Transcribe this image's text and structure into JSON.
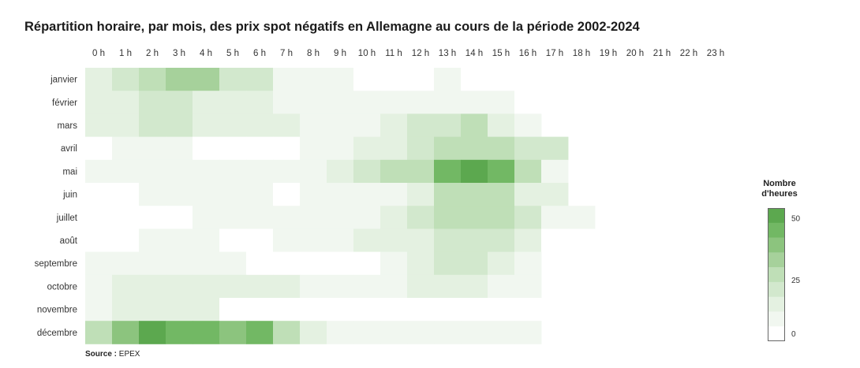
{
  "title": "Répartition horaire, par mois, des prix spot négatifs en Allemagne au cours de la période 2002-2024",
  "source": {
    "label": "Source :",
    "value": "EPEX"
  },
  "chart_data": {
    "type": "heatmap",
    "title": "Répartition horaire, par mois, des prix spot négatifs en Allemagne au cours de la période 2002-2024",
    "x_categories": [
      "0 h",
      "1 h",
      "2 h",
      "3 h",
      "4 h",
      "5 h",
      "6 h",
      "7 h",
      "8 h",
      "9 h",
      "10 h",
      "11 h",
      "12 h",
      "13 h",
      "14 h",
      "15 h",
      "16 h",
      "17 h",
      "18 h",
      "19 h",
      "20 h",
      "21 h",
      "22 h",
      "23 h"
    ],
    "y_categories": [
      "janvier",
      "février",
      "mars",
      "avril",
      "mai",
      "juin",
      "juillet",
      "août",
      "septembre",
      "octobre",
      "novembre",
      "décembre"
    ],
    "values": [
      [
        16,
        22,
        24,
        32,
        32,
        17,
        18,
        10,
        6,
        4,
        3,
        2,
        2,
        5,
        3,
        2,
        1,
        null,
        null,
        null,
        null,
        null,
        null,
        null
      ],
      [
        14,
        14,
        17,
        18,
        15,
        12,
        13,
        8,
        4,
        4,
        4,
        5,
        6,
        6,
        6,
        4,
        3,
        null,
        null,
        null,
        null,
        null,
        null,
        null
      ],
      [
        15,
        16,
        18,
        18,
        16,
        11,
        16,
        11,
        4,
        6,
        9,
        12,
        18,
        21,
        25,
        15,
        8,
        null,
        null,
        null,
        null,
        null,
        null,
        null
      ],
      [
        2,
        4,
        5,
        5,
        3,
        2,
        2,
        3,
        4,
        6,
        12,
        14,
        22,
        25,
        25,
        27,
        21,
        21,
        null,
        null,
        null,
        null,
        null,
        null
      ],
      [
        6,
        9,
        9,
        9,
        7,
        10,
        10,
        8,
        8,
        12,
        21,
        28,
        30,
        50,
        53,
        48,
        29,
        8,
        null,
        null,
        null,
        null,
        null,
        null
      ],
      [
        2,
        3,
        4,
        5,
        6,
        6,
        5,
        2,
        5,
        5,
        7,
        8,
        16,
        27,
        29,
        27,
        15,
        12,
        null,
        null,
        null,
        null,
        null,
        null
      ],
      [
        3,
        3,
        3,
        3,
        4,
        5,
        5,
        6,
        6,
        7,
        10,
        15,
        19,
        26,
        27,
        25,
        18,
        10,
        5,
        null,
        null,
        null,
        null,
        null
      ],
      [
        2,
        3,
        4,
        4,
        4,
        3,
        2,
        4,
        4,
        5,
        11,
        11,
        16,
        20,
        18,
        18,
        14,
        3,
        3,
        null,
        null,
        null,
        null,
        null
      ],
      [
        7,
        7,
        10,
        10,
        9,
        4,
        2,
        2,
        1,
        2,
        3,
        8,
        13,
        20,
        20,
        14,
        5,
        null,
        null,
        null,
        null,
        null,
        null,
        null
      ],
      [
        9,
        12,
        14,
        14,
        14,
        12,
        12,
        12,
        5,
        6,
        9,
        9,
        11,
        12,
        12,
        10,
        7,
        null,
        null,
        null,
        null,
        null,
        null,
        null
      ],
      [
        8,
        12,
        15,
        15,
        13,
        2,
        2,
        2,
        1,
        1,
        1,
        1,
        1,
        1,
        1,
        1,
        1,
        null,
        null,
        null,
        null,
        null,
        null,
        null
      ],
      [
        26,
        41,
        52,
        48,
        45,
        40,
        44,
        26,
        14,
        8,
        8,
        8,
        9,
        8,
        7,
        7,
        6,
        null,
        null,
        null,
        2,
        2,
        2,
        2
      ]
    ],
    "legend": {
      "title": [
        "Nombre",
        "d'heures"
      ],
      "tick_labels": [
        "50",
        "25",
        "0"
      ],
      "placement": "right",
      "color_steps": [
        "#ffffff",
        "#f1f7f0",
        "#e4f1e1",
        "#d2e8cd",
        "#bfdfb7",
        "#a6d19b",
        "#8cc47e",
        "#72b864",
        "#5ca84f"
      ]
    },
    "colors": {
      "min": "#ffffff",
      "max": "#5ca84f"
    },
    "grid": false
  }
}
